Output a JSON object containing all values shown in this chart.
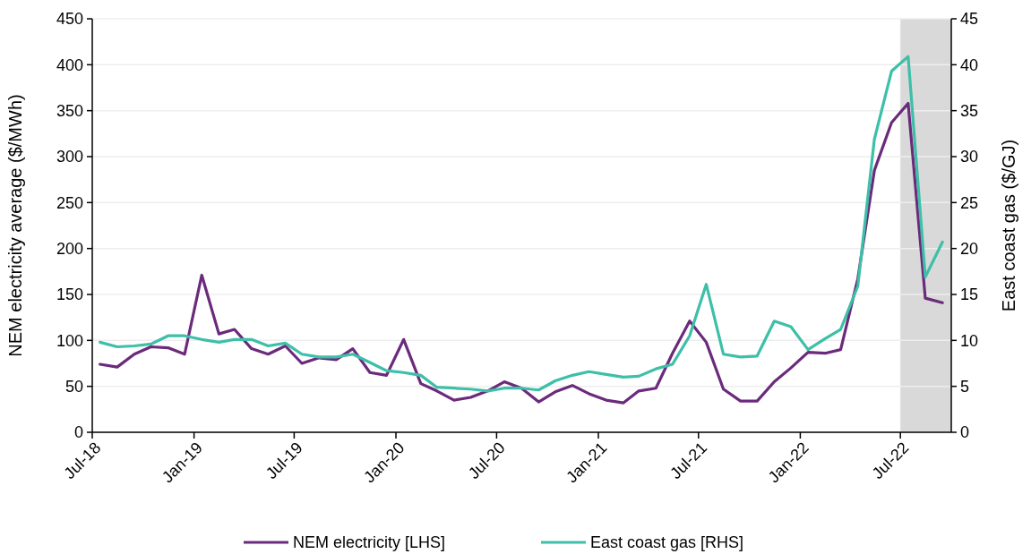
{
  "chart_data": {
    "type": "line",
    "ylabel": "NEM electricity average ($/MWh)",
    "y2label": "East coast gas ($/GJ)",
    "x": [
      "2018-07-15",
      "2018-08-15",
      "2018-09-15",
      "2018-10-15",
      "2018-11-15",
      "2018-12-15",
      "2019-01-15",
      "2019-02-15",
      "2019-03-15",
      "2019-04-15",
      "2019-05-15",
      "2019-06-15",
      "2019-07-15",
      "2019-08-15",
      "2019-09-15",
      "2019-10-15",
      "2019-11-15",
      "2019-12-15",
      "2020-01-15",
      "2020-02-15",
      "2020-03-15",
      "2020-04-15",
      "2020-05-15",
      "2020-06-15",
      "2020-07-15",
      "2020-08-15",
      "2020-09-15",
      "2020-10-15",
      "2020-11-15",
      "2020-12-15",
      "2021-01-15",
      "2021-02-15",
      "2021-03-15",
      "2021-04-15",
      "2021-05-15",
      "2021-06-15",
      "2021-07-15",
      "2021-08-15",
      "2021-09-15",
      "2021-10-15",
      "2021-11-15",
      "2021-12-15",
      "2022-01-15",
      "2022-02-15",
      "2022-03-15",
      "2022-04-15",
      "2022-05-15",
      "2022-06-15",
      "2022-07-15",
      "2022-08-15",
      "2022-09-15"
    ],
    "series": [
      {
        "name": "NEM electricity [LHS]",
        "color": "#6b2a7b",
        "values": [
          74,
          71,
          85,
          93,
          92,
          85,
          171,
          107,
          112,
          91,
          85,
          94,
          75,
          81,
          79,
          91,
          65,
          62,
          101,
          53,
          45,
          35,
          38,
          45,
          55,
          48,
          33,
          44,
          51,
          42,
          35,
          32,
          45,
          48,
          86,
          121,
          98,
          47,
          34,
          34,
          55,
          70,
          87,
          86,
          90,
          167,
          285,
          337,
          358,
          146,
          141
        ]
      },
      {
        "name": "East coast gas [RHS]",
        "color": "#3dbfa8",
        "axis": "y2",
        "values": [
          9.8,
          9.3,
          9.4,
          9.6,
          10.5,
          10.5,
          10.1,
          9.8,
          10.1,
          10.1,
          9.4,
          9.7,
          8.5,
          8.2,
          8.2,
          8.5,
          7.6,
          6.7,
          6.5,
          6.2,
          4.9,
          4.8,
          4.7,
          4.5,
          4.8,
          4.8,
          4.6,
          5.6,
          6.2,
          6.6,
          6.3,
          6.0,
          6.1,
          6.9,
          7.4,
          10.5,
          16.1,
          8.5,
          8.2,
          8.3,
          12.1,
          11.5,
          9.0,
          10.2,
          11.2,
          15.9,
          31.9,
          39.3,
          40.9,
          16.9,
          20.7
        ]
      }
    ],
    "xlim": [
      "2018-07-01",
      "2022-10-01"
    ],
    "xticks": [
      {
        "value": "2018-07-01",
        "label": "Jul-18"
      },
      {
        "value": "2019-01-01",
        "label": "Jan-19"
      },
      {
        "value": "2019-07-01",
        "label": "Jul-19"
      },
      {
        "value": "2020-01-01",
        "label": "Jan-20"
      },
      {
        "value": "2020-07-01",
        "label": "Jul-20"
      },
      {
        "value": "2021-01-01",
        "label": "Jan-21"
      },
      {
        "value": "2021-07-01",
        "label": "Jul-21"
      },
      {
        "value": "2022-01-01",
        "label": "Jan-22"
      },
      {
        "value": "2022-07-01",
        "label": "Jul-22"
      }
    ],
    "ylim": [
      0,
      450
    ],
    "yticks": [
      0,
      50,
      100,
      150,
      200,
      250,
      300,
      350,
      400,
      450
    ],
    "y2lim": [
      0,
      45
    ],
    "y2ticks": [
      0,
      5,
      10,
      15,
      20,
      25,
      30,
      35,
      40,
      45
    ],
    "bands": [
      {
        "axis": "x",
        "from": "2022-07-01",
        "to": "2022-10-01",
        "color": "#d9d9d9"
      }
    ],
    "grid": "y",
    "legend": "bottom",
    "marker": "none",
    "line_style": "solid"
  }
}
